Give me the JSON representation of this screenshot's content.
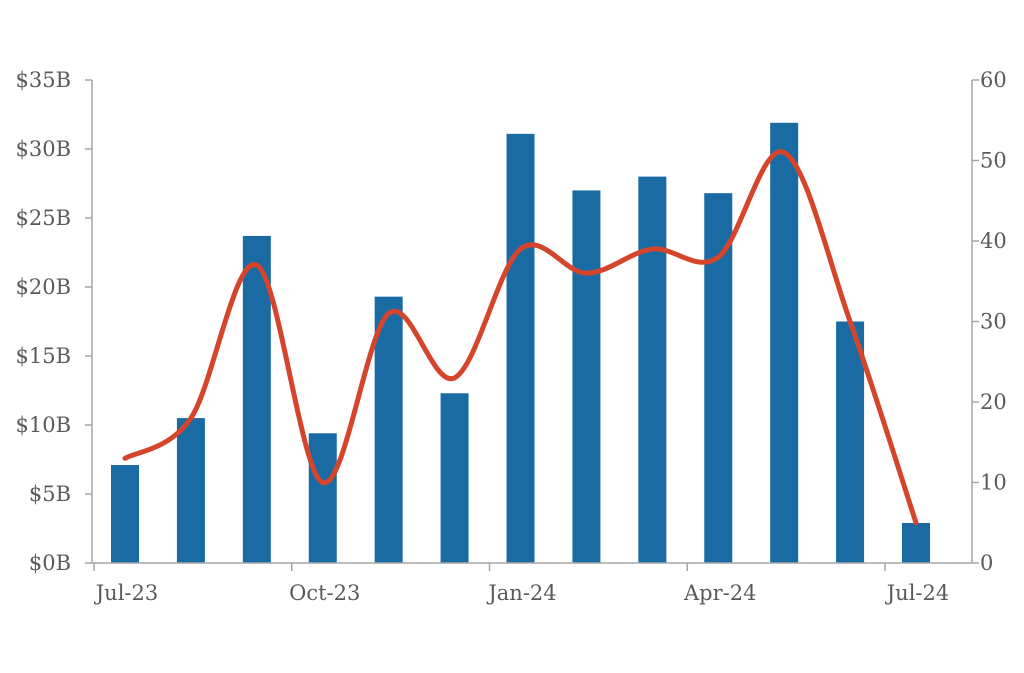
{
  "chart_data": {
    "type": "bar",
    "categories": [
      "Jul-23",
      "Aug-23",
      "Sep-23",
      "Oct-23",
      "Nov-23",
      "Dec-23",
      "Jan-24",
      "Feb-24",
      "Mar-24",
      "Apr-24",
      "May-24",
      "Jun-24",
      "Jul-24"
    ],
    "x_tick_labels": [
      "Jul-23",
      "Oct-23",
      "Jan-24",
      "Apr-24",
      "Jul-24"
    ],
    "series": [
      {
        "type": "bar",
        "axis": "left",
        "color": "#1a6aa3",
        "values": [
          7.1,
          10.5,
          23.7,
          9.4,
          19.3,
          12.3,
          31.1,
          27.0,
          28.0,
          26.8,
          31.9,
          17.5,
          2.9
        ]
      },
      {
        "type": "line",
        "axis": "right",
        "smooth": true,
        "color": "#d5452c",
        "values": [
          13,
          18,
          37,
          10,
          31,
          23,
          39,
          36,
          39,
          38,
          51,
          30,
          5
        ]
      }
    ],
    "y_left": {
      "ylim": [
        0,
        35
      ],
      "tick_labels": [
        "$0B",
        "$5B",
        "$10B",
        "$15B",
        "$20B",
        "$25B",
        "$30B",
        "$35B"
      ]
    },
    "y_right": {
      "ylim": [
        0,
        60
      ],
      "tick_labels": [
        "0",
        "10",
        "20",
        "30",
        "40",
        "50",
        "60"
      ]
    },
    "title": "",
    "xlabel": "",
    "ylabel": "",
    "grid": false,
    "legend": "none"
  }
}
